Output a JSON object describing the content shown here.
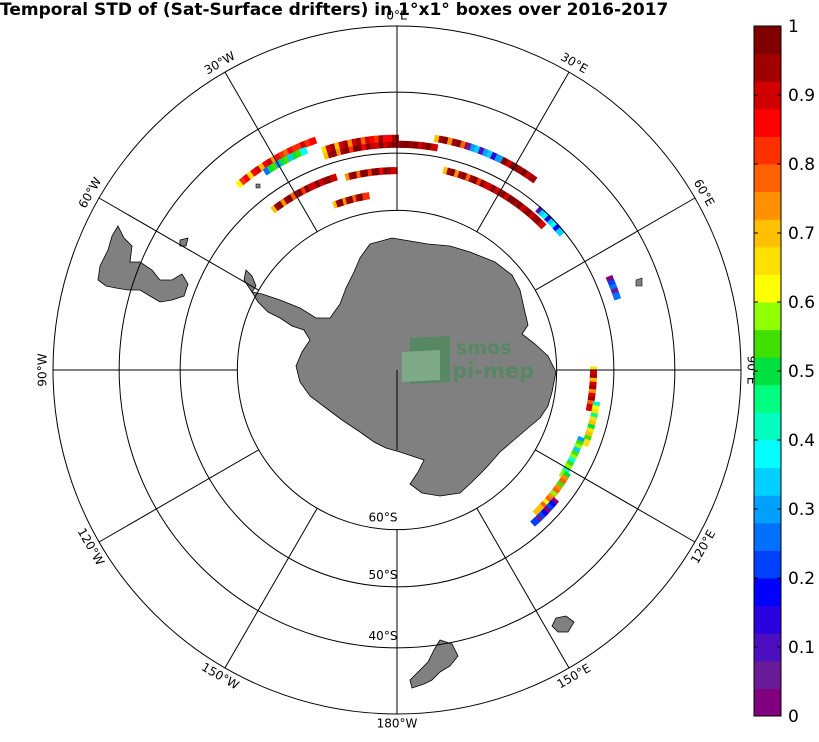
{
  "title": "Temporal STD of (Sat-Surface drifters) in 1°x1° boxes over 2016-2017",
  "logo": {
    "line1": "smos",
    "line2": "pi-mep"
  },
  "longitude_labels": [
    {
      "lon": 0,
      "text": "0°E"
    },
    {
      "lon": 30,
      "text": "30°E"
    },
    {
      "lon": 60,
      "text": "60°E"
    },
    {
      "lon": 90,
      "text": "90°E"
    },
    {
      "lon": 120,
      "text": "120°E"
    },
    {
      "lon": 150,
      "text": "150°E"
    },
    {
      "lon": 180,
      "text": "180°W"
    },
    {
      "lon": -150,
      "text": "150°W"
    },
    {
      "lon": -120,
      "text": "120°W"
    },
    {
      "lon": -90,
      "text": "90°W"
    },
    {
      "lon": -60,
      "text": "60°W"
    },
    {
      "lon": -30,
      "text": "30°W"
    }
  ],
  "latitude_labels": [
    {
      "lat": -60,
      "text": "60°S"
    },
    {
      "lat": -50,
      "text": "50°S"
    },
    {
      "lat": -40,
      "text": "40°S"
    }
  ],
  "colorbar": {
    "min": 0,
    "max": 1,
    "ticks": [
      {
        "value": 0,
        "text": "0"
      },
      {
        "value": 0.1,
        "text": "0.1"
      },
      {
        "value": 0.2,
        "text": "0.2"
      },
      {
        "value": 0.3,
        "text": "0.3"
      },
      {
        "value": 0.4,
        "text": "0.4"
      },
      {
        "value": 0.5,
        "text": "0.5"
      },
      {
        "value": 0.6,
        "text": "0.6"
      },
      {
        "value": 0.7,
        "text": "0.7"
      },
      {
        "value": 0.8,
        "text": "0.8"
      },
      {
        "value": 0.9,
        "text": "0.9"
      },
      {
        "value": 1,
        "text": "1"
      }
    ],
    "colors": [
      "#800080",
      "#6a1b9a",
      "#4b0fbf",
      "#2a00e0",
      "#0000ff",
      "#0040ff",
      "#0070ff",
      "#00a0ff",
      "#00d0ff",
      "#00ffff",
      "#00ffc0",
      "#00ff80",
      "#00e040",
      "#40e000",
      "#90ff00",
      "#ffff00",
      "#ffe000",
      "#ffc000",
      "#ff9000",
      "#ff6000",
      "#ff3000",
      "#ff0000",
      "#d00000",
      "#a00000",
      "#800000"
    ]
  },
  "tracks": [
    {
      "lon_start": -18,
      "lon_end": 10,
      "lat": -48.5,
      "value": 0.96
    },
    {
      "lon_start": -18,
      "lon_end": 0,
      "lat": -47.5,
      "value": 0.9
    },
    {
      "lon_start": -40,
      "lon_end": -20,
      "lat": -45.5,
      "value": 0.85
    },
    {
      "lon_start": -33,
      "lon_end": -22,
      "lat": -46.5,
      "value": 0.5
    },
    {
      "lon_start": 10,
      "lon_end": 36,
      "lat": -47,
      "value": 0.95
    },
    {
      "lon_start": 18,
      "lon_end": 26,
      "lat": -47,
      "value": 0.3
    },
    {
      "lon_start": -14,
      "lon_end": 0,
      "lat": -53,
      "value": 0.97
    },
    {
      "lon_start": -37,
      "lon_end": -18,
      "lat": -52.5,
      "value": 0.95
    },
    {
      "lon_start": 14,
      "lon_end": 45,
      "lat": -52,
      "value": 0.95
    },
    {
      "lon_start": 42,
      "lon_end": 50,
      "lat": -50.5,
      "value": 0.35
    },
    {
      "lon_start": -20,
      "lon_end": -9,
      "lat": -57,
      "value": 0.94
    },
    {
      "lon_start": 67,
      "lon_end": 72,
      "lat": -47.5,
      "value": 0.25
    },
    {
      "lon_start": 90,
      "lon_end": 102,
      "lat": -53.5,
      "value": 0.9
    },
    {
      "lon_start": 100,
      "lon_end": 112,
      "lat": -52.5,
      "value": 0.65
    },
    {
      "lon_start": 111,
      "lon_end": 122,
      "lat": -53.5,
      "value": 0.55
    },
    {
      "lon_start": 122,
      "lon_end": 136,
      "lat": -53,
      "value": 0.75
    },
    {
      "lon_start": 130,
      "lon_end": 138,
      "lat": -52,
      "value": 0.2
    }
  ]
}
